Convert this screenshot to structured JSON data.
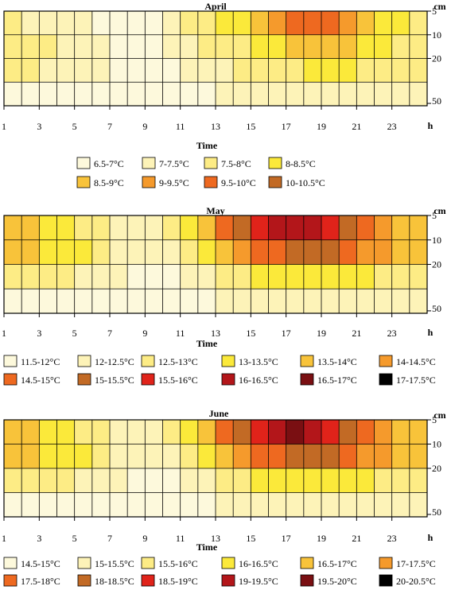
{
  "chart_data": [
    {
      "type": "heatmap",
      "title": "April",
      "xlabel": "Time",
      "x_unit": "h",
      "y_unit": "cm",
      "x_ticks": [
        1,
        3,
        5,
        7,
        9,
        11,
        13,
        15,
        17,
        19,
        21,
        23
      ],
      "y_ticks": [
        5,
        10,
        20,
        50
      ],
      "xlim": [
        1,
        24
      ],
      "legend": {
        "position": "bottom",
        "entries": [
          {
            "label": "6.5-7°C",
            "color": "#fdf9dc"
          },
          {
            "label": "7-7.5°C",
            "color": "#fdf3b8"
          },
          {
            "label": "7.5-8°C",
            "color": "#fdec85"
          },
          {
            "label": "8-8.5°C",
            "color": "#fbe93a"
          },
          {
            "label": "8.5-9°C",
            "color": "#f8c33a"
          },
          {
            "label": "9-9.5°C",
            "color": "#f59a2c"
          },
          {
            "label": "9.5-10°C",
            "color": "#ee6920"
          },
          {
            "label": "10-10.5°C",
            "color": "#c26a25"
          }
        ]
      },
      "grid": [
        [
          3,
          2,
          2,
          2,
          2,
          1,
          1,
          1,
          1,
          2,
          3,
          3,
          4,
          4,
          5,
          6,
          7,
          7,
          7,
          6,
          5,
          4,
          4,
          3
        ],
        [
          3,
          3,
          3,
          2,
          2,
          2,
          1,
          1,
          1,
          2,
          2,
          3,
          3,
          3,
          4,
          4,
          5,
          5,
          5,
          5,
          4,
          4,
          3,
          3
        ],
        [
          3,
          3,
          2,
          2,
          2,
          2,
          1,
          1,
          1,
          1,
          2,
          2,
          2,
          3,
          3,
          3,
          3,
          4,
          4,
          4,
          3,
          3,
          3,
          3
        ],
        [
          1,
          1,
          1,
          1,
          1,
          1,
          1,
          1,
          1,
          1,
          1,
          1,
          2,
          2,
          2,
          2,
          2,
          2,
          2,
          2,
          2,
          2,
          2,
          2
        ]
      ]
    },
    {
      "type": "heatmap",
      "title": "May",
      "xlabel": "Time",
      "x_unit": "h",
      "y_unit": "cm",
      "x_ticks": [
        1,
        3,
        5,
        7,
        9,
        11,
        13,
        15,
        17,
        19,
        21,
        23
      ],
      "y_ticks": [
        5,
        10,
        20,
        50
      ],
      "xlim": [
        1,
        24
      ],
      "legend": {
        "position": "bottom",
        "entries": [
          {
            "label": "11.5-12°C",
            "color": "#fdf9dc"
          },
          {
            "label": "12-12.5°C",
            "color": "#fdf3b8"
          },
          {
            "label": "12.5-13°C",
            "color": "#fdec85"
          },
          {
            "label": "13-13.5°C",
            "color": "#fbe93a"
          },
          {
            "label": "13.5-14°C",
            "color": "#f8c33a"
          },
          {
            "label": "14-14.5°C",
            "color": "#f59a2c"
          },
          {
            "label": "14.5-15°C",
            "color": "#ee6920"
          },
          {
            "label": "15-15.5°C",
            "color": "#c26a25"
          },
          {
            "label": "15.5-16°C",
            "color": "#e0231a"
          },
          {
            "label": "16-16.5°C",
            "color": "#b3161a"
          },
          {
            "label": "16.5-17°C",
            "color": "#7a0f12"
          },
          {
            "label": "17-17.5°C",
            "color": "#000000"
          }
        ]
      },
      "grid": [
        [
          5,
          5,
          4,
          4,
          3,
          3,
          2,
          2,
          2,
          3,
          4,
          5,
          7,
          8,
          9,
          10,
          10,
          10,
          9,
          8,
          7,
          6,
          5,
          5
        ],
        [
          5,
          5,
          4,
          4,
          4,
          3,
          2,
          2,
          2,
          2,
          3,
          4,
          5,
          6,
          7,
          7,
          8,
          8,
          8,
          7,
          6,
          6,
          5,
          5
        ],
        [
          3,
          3,
          3,
          3,
          2,
          2,
          2,
          1,
          1,
          1,
          2,
          2,
          3,
          3,
          4,
          4,
          4,
          4,
          4,
          4,
          4,
          3,
          3,
          3
        ],
        [
          1,
          1,
          1,
          1,
          1,
          1,
          1,
          1,
          1,
          1,
          1,
          1,
          2,
          2,
          2,
          2,
          2,
          2,
          2,
          2,
          2,
          2,
          2,
          2
        ]
      ]
    },
    {
      "type": "heatmap",
      "title": "",
      "xlabel": "Time",
      "x_unit": "h",
      "y_unit": "cm",
      "x_ticks": [
        1,
        3,
        5,
        7,
        9,
        11,
        13,
        15,
        17,
        19,
        21,
        23
      ],
      "y_ticks": [
        5,
        10,
        20,
        50
      ],
      "xlim": [
        1,
        24
      ],
      "legend_title": "June",
      "legend": {
        "position": "bottom",
        "entries": [
          {
            "label": "14.5-15°C",
            "color": "#fdf9dc"
          },
          {
            "label": "15-15.5°C",
            "color": "#fdf3b8"
          },
          {
            "label": "15.5-16°C",
            "color": "#fdec85"
          },
          {
            "label": "16-16.5°C",
            "color": "#fbe93a"
          },
          {
            "label": "16.5-17°C",
            "color": "#f8c33a"
          },
          {
            "label": "17-17.5°C",
            "color": "#f59a2c"
          },
          {
            "label": "17.5-18°C",
            "color": "#ee6920"
          },
          {
            "label": "18-18.5°C",
            "color": "#c26a25"
          },
          {
            "label": "18.5-19°C",
            "color": "#e0231a"
          },
          {
            "label": "19-19.5°C",
            "color": "#b3161a"
          },
          {
            "label": "19.5-20°C",
            "color": "#7a0f12"
          },
          {
            "label": "20-20.5°C",
            "color": "#000000"
          }
        ]
      },
      "grid": [
        [
          5,
          5,
          4,
          4,
          3,
          3,
          2,
          2,
          2,
          3,
          4,
          5,
          7,
          8,
          9,
          10,
          11,
          10,
          9,
          8,
          7,
          6,
          5,
          5
        ],
        [
          5,
          5,
          4,
          4,
          4,
          3,
          2,
          2,
          2,
          2,
          3,
          4,
          5,
          6,
          7,
          7,
          8,
          8,
          8,
          7,
          6,
          6,
          5,
          5
        ],
        [
          3,
          3,
          3,
          3,
          2,
          2,
          2,
          1,
          1,
          1,
          2,
          2,
          3,
          3,
          4,
          4,
          4,
          4,
          4,
          4,
          4,
          3,
          3,
          3
        ],
        [
          1,
          1,
          1,
          1,
          1,
          1,
          1,
          1,
          1,
          1,
          1,
          1,
          2,
          2,
          2,
          2,
          2,
          2,
          2,
          2,
          2,
          2,
          2,
          2
        ]
      ]
    }
  ]
}
